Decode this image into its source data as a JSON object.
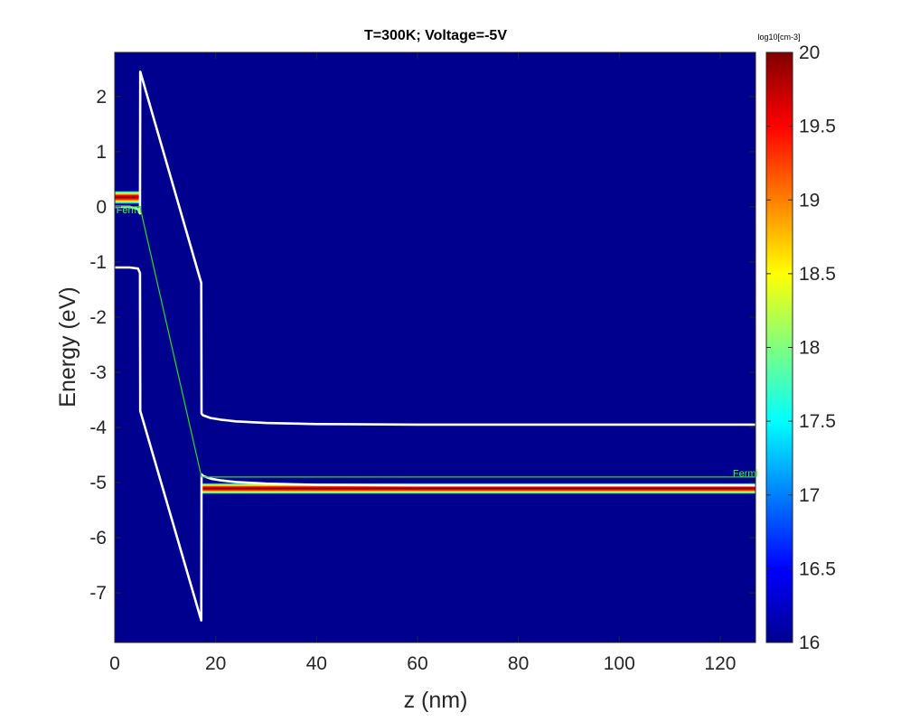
{
  "chart_data": {
    "type": "heatmap",
    "title": "T=300K; Voltage=-5V",
    "xlabel": "z (nm)",
    "ylabel": "Energy (eV)",
    "xlim": [
      0,
      127
    ],
    "ylim": [
      -7.9,
      2.8
    ],
    "x_ticks": [
      "0",
      "20",
      "40",
      "60",
      "80",
      "100",
      "120"
    ],
    "y_ticks": [
      "2",
      "1",
      "0",
      "-1",
      "-2",
      "-3",
      "-4",
      "-5",
      "-6",
      "-7"
    ],
    "colorbar": {
      "unit_label": "log10[cm-3]",
      "range": [
        16,
        20
      ],
      "ticks": [
        "20",
        "19.5",
        "19",
        "18.5",
        "18",
        "17.5",
        "17",
        "16.5",
        "16"
      ],
      "colormap": "jet"
    },
    "background_color": "#00008f",
    "band_line_color": "#ffffff",
    "fermi_color": "#22dd22",
    "series": [
      {
        "name": "conduction band",
        "x": [
          0,
          3,
          4.6,
          5,
          5.05,
          17.15,
          17.2,
          17.5,
          19,
          21,
          24,
          30,
          40,
          60,
          127
        ],
        "y": [
          0.0,
          0.0,
          -0.04,
          -0.12,
          2.45,
          -1.38,
          -3.75,
          -3.78,
          -3.83,
          -3.86,
          -3.89,
          -3.92,
          -3.94,
          -3.95,
          -3.95
        ]
      },
      {
        "name": "valence band",
        "x": [
          0,
          3,
          4.6,
          5,
          5.05,
          17.15,
          17.2,
          17.5,
          19,
          21,
          24,
          30,
          40,
          60,
          127
        ],
        "y": [
          -1.1,
          -1.1,
          -1.12,
          -1.2,
          -3.7,
          -7.5,
          -4.85,
          -4.88,
          -4.93,
          -4.96,
          -4.99,
          -5.02,
          -5.04,
          -5.05,
          -5.05
        ]
      },
      {
        "name": "Fermi",
        "x": [
          0,
          5,
          17.2,
          127
        ],
        "y": [
          0.0,
          0.0,
          -4.9,
          -4.9
        ]
      }
    ],
    "annotations": [
      {
        "text": "Fermi",
        "x": 0.3,
        "y": -0.05
      },
      {
        "text": "Fermi",
        "x": 122.5,
        "y": -4.83
      }
    ],
    "density_bands": [
      {
        "x": [
          0,
          5
        ],
        "y_center": 0.17,
        "half_width": 0.12,
        "peak": 20
      },
      {
        "x": [
          17.2,
          127
        ],
        "y_center": -5.11,
        "half_width": 0.1,
        "peak": 20
      }
    ]
  }
}
